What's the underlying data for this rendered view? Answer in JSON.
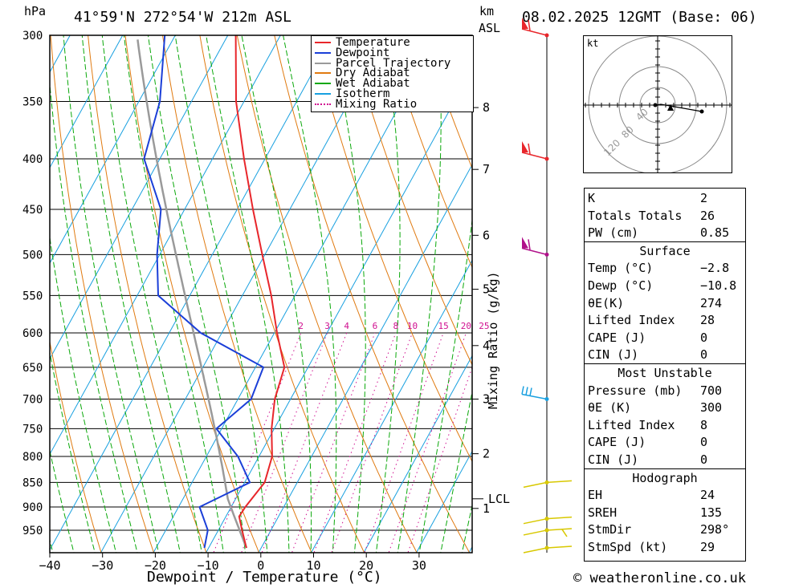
{
  "header": {
    "hpa_label": "hPa",
    "location": "41°59'N  272°54'W  212m  ASL",
    "km_label": "km",
    "asl_label": "ASL",
    "datetime": "08.02.2025  12GMT  (Base: 06)"
  },
  "x_axis_title": "Dewpoint / Temperature (°C)",
  "mixing_axis_title": "Mixing Ratio (g/kg)",
  "mixing_values": [
    "2",
    "3",
    "4",
    "6",
    "8",
    "10",
    "15",
    "20",
    "25"
  ],
  "lcl_label": "LCL",
  "legend": [
    {
      "label": "Temperature",
      "color": "#e8262b",
      "dash": false
    },
    {
      "label": "Dewpoint",
      "color": "#1b3fd8",
      "dash": false
    },
    {
      "label": "Parcel Trajectory",
      "color": "#9a9a9a",
      "dash": false
    },
    {
      "label": "Dry Adiabat",
      "color": "#e07a10",
      "dash": false
    },
    {
      "label": "Wet Adiabat",
      "color": "#0aa80a",
      "dash": false
    },
    {
      "label": "Isotherm",
      "color": "#18a0e0",
      "dash": false
    },
    {
      "label": "Mixing Ratio",
      "color": "#d01090",
      "dash": true
    }
  ],
  "chart_data": {
    "type": "skew-t",
    "x_unit": "°C",
    "y_unit": "hPa",
    "pressure_levels": [
      300,
      350,
      400,
      450,
      500,
      550,
      600,
      650,
      700,
      750,
      800,
      850,
      900,
      950
    ],
    "temperature_ticks": [
      -40,
      -30,
      -20,
      -10,
      0,
      10,
      20,
      30
    ],
    "height_km_ticks": [
      {
        "label": "8",
        "p": 355
      },
      {
        "label": "7",
        "p": 410
      },
      {
        "label": "6",
        "p": 478
      },
      {
        "label": "5",
        "p": 542
      },
      {
        "label": "4",
        "p": 618
      },
      {
        "label": "3",
        "p": 700
      },
      {
        "label": "2",
        "p": 795
      },
      {
        "label": "1",
        "p": 903
      }
    ],
    "lcl_pressure": 883,
    "temperature_profile": [
      {
        "p": 990,
        "t": -2.8
      },
      {
        "p": 950,
        "t": -5.5
      },
      {
        "p": 920,
        "t": -7.5
      },
      {
        "p": 900,
        "t": -7.3
      },
      {
        "p": 850,
        "t": -6.2
      },
      {
        "p": 800,
        "t": -7.5
      },
      {
        "p": 750,
        "t": -10.5
      },
      {
        "p": 700,
        "t": -13.0
      },
      {
        "p": 650,
        "t": -14.5
      },
      {
        "p": 600,
        "t": -19.5
      },
      {
        "p": 550,
        "t": -24.5
      },
      {
        "p": 500,
        "t": -30.5
      },
      {
        "p": 450,
        "t": -37.0
      },
      {
        "p": 400,
        "t": -44.0
      },
      {
        "p": 350,
        "t": -51.5
      },
      {
        "p": 300,
        "t": -58.5
      }
    ],
    "dewpoint_profile": [
      {
        "p": 990,
        "t": -10.8
      },
      {
        "p": 950,
        "t": -12.0
      },
      {
        "p": 900,
        "t": -16.0
      },
      {
        "p": 850,
        "t": -9.0
      },
      {
        "p": 800,
        "t": -14.0
      },
      {
        "p": 750,
        "t": -21.0
      },
      {
        "p": 700,
        "t": -17.5
      },
      {
        "p": 650,
        "t": -18.5
      },
      {
        "p": 600,
        "t": -34.0
      },
      {
        "p": 550,
        "t": -46.0
      },
      {
        "p": 500,
        "t": -50.5
      },
      {
        "p": 450,
        "t": -54.5
      },
      {
        "p": 400,
        "t": -63.0
      },
      {
        "p": 350,
        "t": -66.0
      },
      {
        "p": 300,
        "t": -72.0
      }
    ]
  },
  "hodograph": {
    "unit_label": "kt",
    "rings": [
      "40",
      "80",
      "120"
    ]
  },
  "indices": {
    "rows": [
      {
        "k": "K",
        "v": "2"
      },
      {
        "k": "Totals Totals",
        "v": "26"
      },
      {
        "k": "PW (cm)",
        "v": "0.85"
      }
    ]
  },
  "surface": {
    "title": "Surface",
    "rows": [
      {
        "k": "Temp (°C)",
        "v": "−2.8"
      },
      {
        "k": "Dewp (°C)",
        "v": "−10.8"
      },
      {
        "k": "θE(K)",
        "v": "274"
      },
      {
        "k": "Lifted Index",
        "v": "28"
      },
      {
        "k": "CAPE (J)",
        "v": "0"
      },
      {
        "k": "CIN (J)",
        "v": "0"
      }
    ]
  },
  "most_unstable": {
    "title": "Most Unstable",
    "rows": [
      {
        "k": "Pressure (mb)",
        "v": "700"
      },
      {
        "k": "θE (K)",
        "v": "300"
      },
      {
        "k": "Lifted Index",
        "v": "8"
      },
      {
        "k": "CAPE (J)",
        "v": "0"
      },
      {
        "k": "CIN (J)",
        "v": "0"
      }
    ]
  },
  "hodograph_table": {
    "title": "Hodograph",
    "rows": [
      {
        "k": "EH",
        "v": "24"
      },
      {
        "k": "SREH",
        "v": "135"
      },
      {
        "k": "StmDir",
        "v": "298°"
      },
      {
        "k": "StmSpd (kt)",
        "v": "29"
      }
    ]
  },
  "footer": {
    "copyright": "© weatheronline.co.uk"
  },
  "colors": {
    "isotherm": "#18a0e0",
    "dry": "#e07a10",
    "wet": "#0aa80a",
    "mix": "#d01090",
    "temp": "#e8262b",
    "dew": "#1b3fd8",
    "parcel": "#9a9a9a"
  }
}
